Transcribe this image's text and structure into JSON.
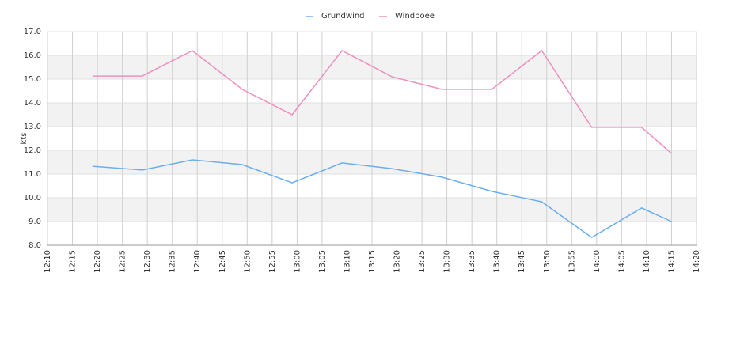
{
  "chart_data": {
    "type": "line",
    "y_label": "kts",
    "x": [
      "12:19",
      "12:29",
      "12:39",
      "12:49",
      "12:59",
      "13:09",
      "13:19",
      "13:29",
      "13:39",
      "13:49",
      "13:59",
      "14:09",
      "14:15"
    ],
    "series": [
      {
        "name": "Grundwind",
        "color": "#6aaef0",
        "values": [
          11.33,
          11.17,
          11.6,
          11.4,
          10.63,
          11.47,
          11.23,
          10.87,
          10.27,
          9.83,
          8.33,
          9.57,
          9.0
        ]
      },
      {
        "name": "Windboee",
        "color": "#ef8fbf",
        "values": [
          15.13,
          15.13,
          16.2,
          14.57,
          13.5,
          16.2,
          15.1,
          14.57,
          14.57,
          16.2,
          12.97,
          12.97,
          11.87
        ]
      }
    ],
    "xlim": [
      "12:10",
      "14:20"
    ],
    "xticks": [
      "12:10",
      "12:15",
      "12:20",
      "12:25",
      "12:30",
      "12:35",
      "12:40",
      "12:45",
      "12:50",
      "12:55",
      "13:00",
      "13:05",
      "13:10",
      "13:15",
      "13:20",
      "13:25",
      "13:30",
      "13:35",
      "13:40",
      "13:45",
      "13:50",
      "13:55",
      "14:00",
      "14:05",
      "14:10",
      "14:15",
      "14:20"
    ],
    "ylim": [
      8,
      17
    ],
    "yticks": [
      {
        "value": 8,
        "label": "8.0"
      },
      {
        "value": 9,
        "label": "9.0"
      },
      {
        "value": 10,
        "label": "10.0"
      },
      {
        "value": 11,
        "label": "11.0"
      },
      {
        "value": 12,
        "label": "12.0"
      },
      {
        "value": 13,
        "label": "13.0"
      },
      {
        "value": 14,
        "label": "14.0"
      },
      {
        "value": 15,
        "label": "15.0"
      },
      {
        "value": 16,
        "label": "16.0"
      },
      {
        "value": 17,
        "label": "17.0"
      }
    ],
    "grid": true,
    "legend": "top"
  }
}
